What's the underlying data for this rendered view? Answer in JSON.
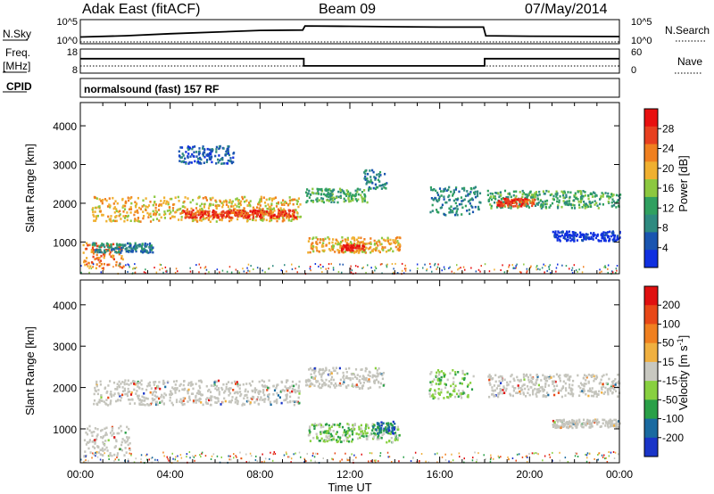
{
  "header": {
    "site": "Adak East (fitACF)",
    "beam": "Beam 09",
    "date": "07/May/2014"
  },
  "labels": {
    "nsky": "N.Sky",
    "nsearch": "N.Search",
    "freq_top": "Freq.",
    "freq_unit": "[MHz]",
    "nave": "Nave",
    "cpid": "CPID",
    "mode": "normalsound (fast) 157 RF",
    "x_axis": "Time UT",
    "log_ticks_left": [
      "10^5",
      "10^0"
    ],
    "log_ticks_right": [
      "10^5",
      "10^0"
    ],
    "freq_ticks": [
      "18",
      "8"
    ],
    "nave_ticks": [
      "60",
      "0"
    ]
  },
  "colors": {
    "power_scale": [
      "#1030e0",
      "#1a55b0",
      "#2e8a80",
      "#30a060",
      "#8cc840",
      "#f0b030",
      "#f08020",
      "#e84020",
      "#e81010"
    ],
    "velocity_scale": [
      "#1a35c8",
      "#1a6aa0",
      "#2aa048",
      "#88d040",
      "#c8c8c0",
      "#f0b040",
      "#f08020",
      "#e84818",
      "#e01010"
    ],
    "ground_gray": "#c4c4bc"
  },
  "chart_data": [
    {
      "type": "line",
      "title": "N.Sky / N.Search",
      "x": [
        0,
        2,
        4,
        6,
        8,
        9.9,
        10.0,
        12,
        14,
        16,
        17.95,
        18.05,
        20,
        24
      ],
      "series": [
        {
          "values": [
            1.2,
            1.5,
            2.0,
            2.4,
            2.8,
            2.9,
            3.9,
            3.8,
            3.7,
            3.6,
            3.6,
            1.5,
            1.4,
            1.3
          ]
        }
      ],
      "xlim": [
        0,
        24
      ],
      "ylim_log10": [
        0,
        5
      ],
      "tick_labels": [
        "10^5",
        "10^0"
      ]
    },
    {
      "type": "line",
      "title": "Freq. / Nave",
      "x": [
        0,
        9.95,
        9.95,
        18.0,
        18.0,
        24
      ],
      "series": [
        {
          "values": [
            14,
            14,
            11,
            11,
            14,
            14
          ]
        },
        {
          "values": [
            8,
            8,
            8,
            8,
            8,
            8
          ]
        }
      ],
      "xlim": [
        0,
        24
      ],
      "ylim": [
        8,
        18
      ],
      "nave_ylim": [
        0,
        60
      ]
    },
    {
      "type": "heatmap",
      "xlabel": "",
      "ylabel": "Slant Range [km]",
      "colorbar_label": "Power [dB]",
      "colorbar_ticks": [
        28,
        24,
        20,
        16,
        12,
        8,
        4
      ],
      "xlim": [
        0,
        24
      ],
      "ylim": [
        180,
        4600
      ],
      "yticks": [
        1000,
        2000,
        3000,
        4000
      ],
      "regions": [
        {
          "t0": 0.1,
          "t1": 1.9,
          "r0": 350,
          "r1": 1000,
          "level": 6
        },
        {
          "t0": 0.5,
          "t1": 3.2,
          "r0": 750,
          "r1": 1000,
          "level": 2
        },
        {
          "t0": 0.5,
          "t1": 9.8,
          "r0": 1550,
          "r1": 2200,
          "level": 5
        },
        {
          "t0": 4.5,
          "t1": 9.6,
          "r0": 1650,
          "r1": 1850,
          "level": 7
        },
        {
          "t0": 4.3,
          "t1": 6.8,
          "r0": 3050,
          "r1": 3500,
          "level": 1
        },
        {
          "t0": 10.0,
          "t1": 12.8,
          "r0": 2050,
          "r1": 2400,
          "level": 3
        },
        {
          "t0": 12.6,
          "t1": 13.6,
          "r0": 2400,
          "r1": 2900,
          "level": 2
        },
        {
          "t0": 10.1,
          "t1": 14.2,
          "r0": 750,
          "r1": 1150,
          "level": 5
        },
        {
          "t0": 11.6,
          "t1": 12.6,
          "r0": 800,
          "r1": 950,
          "level": 8
        },
        {
          "t0": 15.5,
          "t1": 17.8,
          "r0": 1700,
          "r1": 2450,
          "level": 2
        },
        {
          "t0": 18.1,
          "t1": 24.0,
          "r0": 1900,
          "r1": 2350,
          "level": 3
        },
        {
          "t0": 18.5,
          "t1": 20.2,
          "r0": 1950,
          "r1": 2150,
          "level": 7
        },
        {
          "t0": 21.0,
          "t1": 24.0,
          "r0": 1050,
          "r1": 1300,
          "level": 0
        }
      ]
    },
    {
      "type": "heatmap",
      "xlabel": "Time UT",
      "ylabel": "Slant Range [km]",
      "colorbar_label": "Velocity [m s-1]",
      "colorbar_ticks": [
        200,
        100,
        50,
        15,
        -15,
        -50,
        -100,
        -200
      ],
      "xlim": [
        0,
        24
      ],
      "ylim": [
        180,
        4600
      ],
      "yticks": [
        1000,
        2000,
        3000,
        4000
      ],
      "xticks": [
        "00:00",
        "04:00",
        "08:00",
        "12:00",
        "16:00",
        "20:00",
        "00:00"
      ],
      "regions": [
        {
          "t0": 0.1,
          "t1": 2.2,
          "r0": 350,
          "r1": 1100,
          "level": 4
        },
        {
          "t0": 0.5,
          "t1": 9.8,
          "r0": 1600,
          "r1": 2200,
          "level": 4
        },
        {
          "t0": 10.0,
          "t1": 13.5,
          "r0": 2000,
          "r1": 2500,
          "level": 4
        },
        {
          "t0": 10.1,
          "t1": 14.2,
          "r0": 700,
          "r1": 1150,
          "level": 3
        },
        {
          "t0": 13.0,
          "t1": 14.0,
          "r0": 900,
          "r1": 1200,
          "level": 1
        },
        {
          "t0": 15.5,
          "t1": 17.5,
          "r0": 1750,
          "r1": 2450,
          "level": 3
        },
        {
          "t0": 18.1,
          "t1": 24.0,
          "r0": 1800,
          "r1": 2350,
          "level": 4
        },
        {
          "t0": 21.0,
          "t1": 24.0,
          "r0": 1050,
          "r1": 1250,
          "level": 4
        }
      ]
    }
  ]
}
